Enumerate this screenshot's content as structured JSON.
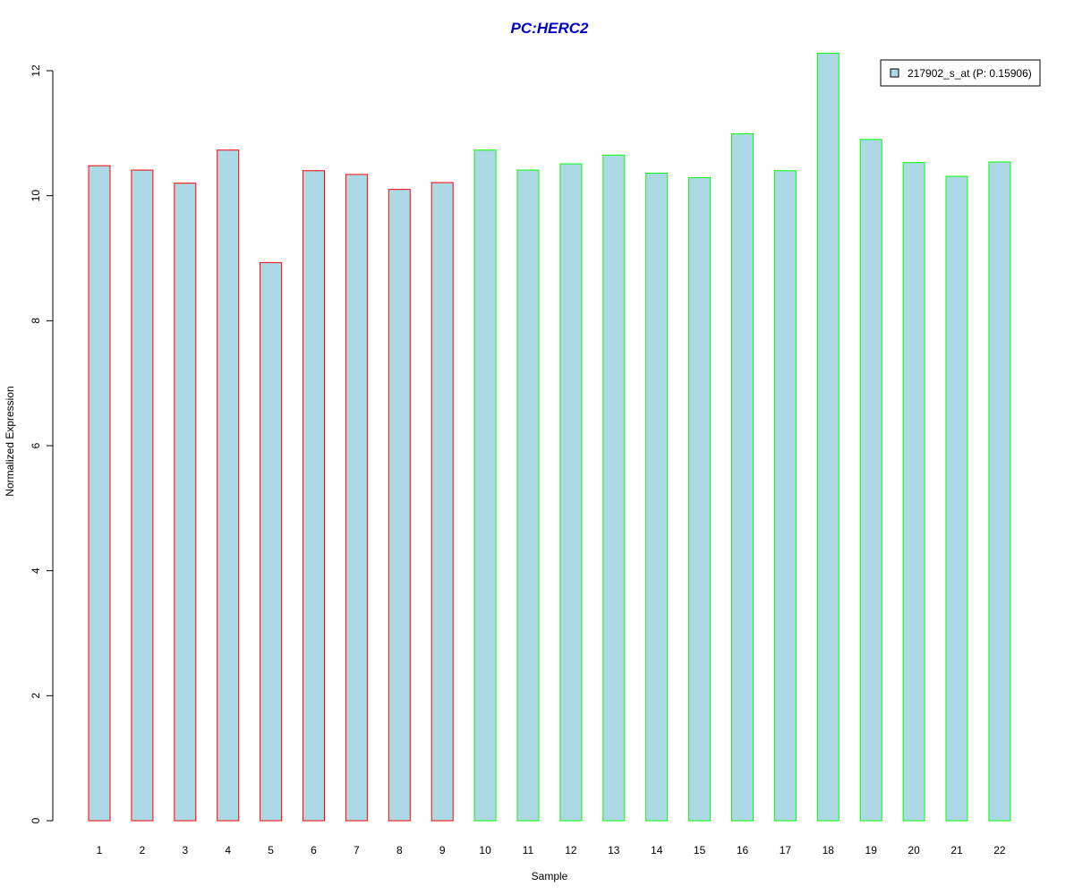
{
  "chart_data": {
    "type": "bar",
    "title": "PC:HERC2",
    "xlabel": "Sample",
    "ylabel": "Normalized Expression",
    "categories": [
      "1",
      "2",
      "3",
      "4",
      "5",
      "6",
      "7",
      "8",
      "9",
      "10",
      "11",
      "12",
      "13",
      "14",
      "15",
      "16",
      "17",
      "18",
      "19",
      "20",
      "21",
      "22"
    ],
    "series": [
      {
        "name": "217902_s_at (P: 0.15906)",
        "values": [
          10.48,
          10.41,
          10.2,
          10.73,
          8.93,
          10.4,
          10.34,
          10.1,
          10.21,
          10.73,
          10.41,
          10.51,
          10.65,
          10.36,
          10.29,
          10.99,
          10.4,
          12.28,
          10.9,
          10.53,
          10.31,
          10.54
        ]
      }
    ],
    "bar_border_colors": [
      "#ff0000",
      "#ff0000",
      "#ff0000",
      "#ff0000",
      "#ff0000",
      "#ff0000",
      "#ff0000",
      "#ff0000",
      "#ff0000",
      "#00ff00",
      "#00ff00",
      "#00ff00",
      "#00ff00",
      "#00ff00",
      "#00ff00",
      "#00ff00",
      "#00ff00",
      "#00ff00",
      "#00ff00",
      "#00ff00",
      "#00ff00",
      "#00ff00"
    ],
    "bar_fill_color": "#add8e6",
    "title_color": "#0000cd",
    "ylim": [
      0,
      12
    ],
    "yticks": [
      0,
      2,
      4,
      6,
      8,
      10,
      12
    ],
    "grid": false,
    "legend_position": "top-right"
  }
}
